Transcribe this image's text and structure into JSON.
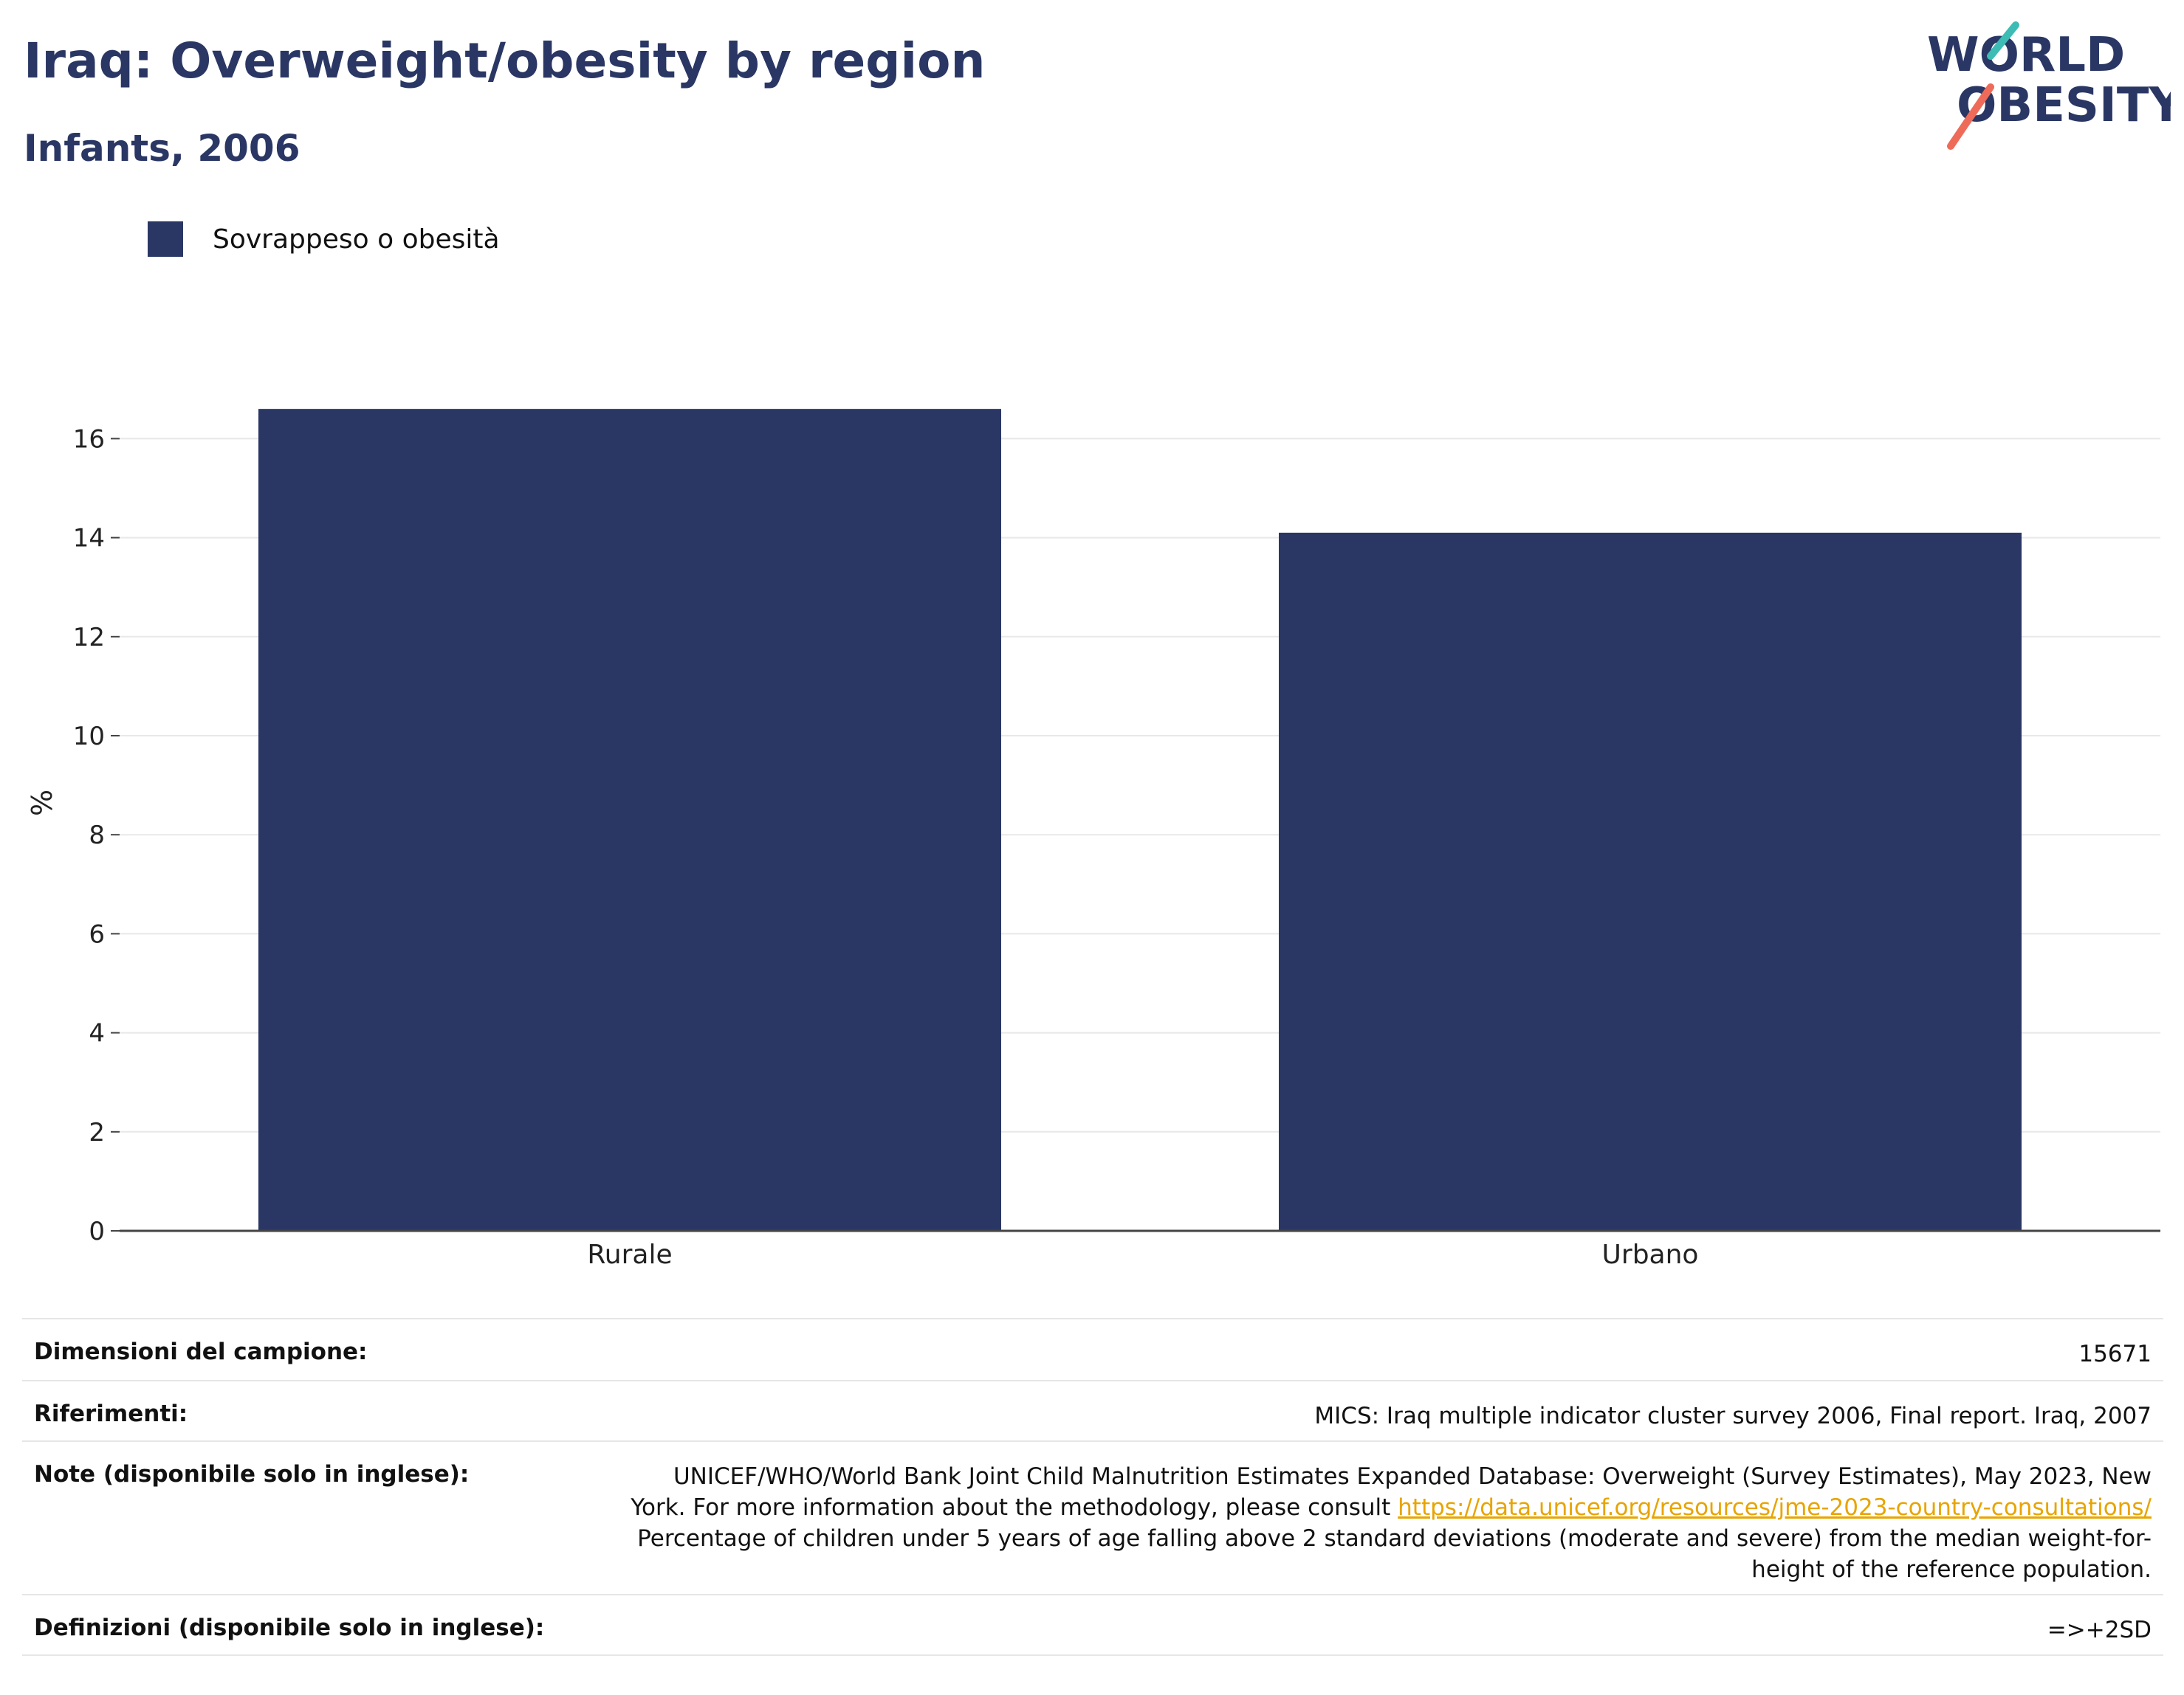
{
  "header": {
    "title": "Iraq: Overweight/obesity by region",
    "subtitle": "Infants, 2006"
  },
  "logo": {
    "line1": "WORLD",
    "line2": "OBESITY",
    "colors": {
      "text": "#2a3764",
      "stroke_teal": "#3cbcb4",
      "stroke_coral": "#ee6b5a"
    }
  },
  "legend": {
    "items": [
      {
        "label": "Sovrappeso o obesità",
        "color": "#2a3764"
      }
    ]
  },
  "chart_data": {
    "type": "bar",
    "categories": [
      "Rurale",
      "Urbano"
    ],
    "series": [
      {
        "name": "Sovrappeso o obesità",
        "values": [
          16.6,
          14.1
        ],
        "color": "#2a3764"
      }
    ],
    "ylabel": "%",
    "ylim": [
      0,
      17
    ],
    "yticks": [
      0,
      2,
      4,
      6,
      8,
      10,
      12,
      14,
      16
    ],
    "grid": true,
    "legend_position": "top-left"
  },
  "notes": {
    "sample_size": {
      "label": "Dimensioni del campione:",
      "value": "15671"
    },
    "references": {
      "label": "Riferimenti:",
      "value": "MICS: Iraq multiple indicator cluster survey 2006, Final report. Iraq, 2007"
    },
    "note": {
      "label": "Note (disponibile solo in inglese):",
      "text1": "UNICEF/WHO/World Bank Joint Child Malnutrition Estimates Expanded Database: Overweight (Survey Estimates), May 2023, New York. For more information about the methodology, please consult",
      "link": "https://data.unicef.org/resources/jme-2023-country-consultations/",
      "text2": "Percentage of children under 5 years of age falling above 2 standard deviations (moderate and severe) from the median weight-for-height of the reference population."
    },
    "definitions": {
      "label": "Definizioni (disponibile solo in inglese):",
      "value": "=>+2SD"
    }
  }
}
